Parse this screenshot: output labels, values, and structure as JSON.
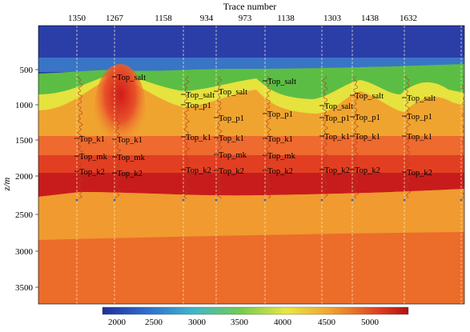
{
  "axis": {
    "top_title": "Trace number",
    "left_title": "z/m",
    "trace_ticks": [
      "1350",
      "1267",
      "1158",
      "934",
      "973",
      "1138",
      "1303",
      "1438",
      "1632"
    ],
    "depth_ticks": [
      "500",
      "1000",
      "1500",
      "2000",
      "2500",
      "3000",
      "3500"
    ]
  },
  "colorbar": {
    "ticks": [
      "2000",
      "2500",
      "3000",
      "3500",
      "4000",
      "4500",
      "5000"
    ]
  },
  "wells": [
    {
      "labels": [
        "Top_k1",
        "Top_mk",
        "Top_k2"
      ]
    },
    {
      "labels": [
        "Top_salt",
        "Top_k1",
        "Top_mk",
        "Top_k2"
      ]
    },
    {
      "labels": [
        "Top_salt",
        "Top_p1",
        "Top_k1",
        "Top_k2"
      ]
    },
    {
      "labels": [
        "Top_salt",
        "Top_p1",
        "Top_k1",
        "Top_mk",
        "Top_k2"
      ]
    },
    {
      "labels": [
        "Top_salt",
        "Top_p1",
        "Top_k1",
        "Top_mk",
        "Top_k2"
      ]
    },
    {
      "labels": [
        "Top_salt",
        "Top_p1",
        "Top_k1",
        "Top_k2"
      ]
    },
    {
      "labels": [
        "Top_salt",
        "Top_p1",
        "Top_k1",
        "Top_k2"
      ]
    },
    {
      "labels": [
        "Top_salt",
        "Top_p1",
        "Top_k1",
        "Top_k2"
      ]
    }
  ],
  "colors": {
    "water": "#2a3fb0",
    "shallow": "#3a78c8",
    "salt": "#5fc040",
    "yellow": "#f0e040",
    "orange": "#f0a030",
    "red": "#e03020",
    "deep_red": "#c81818",
    "basement": "#f07a28"
  }
}
